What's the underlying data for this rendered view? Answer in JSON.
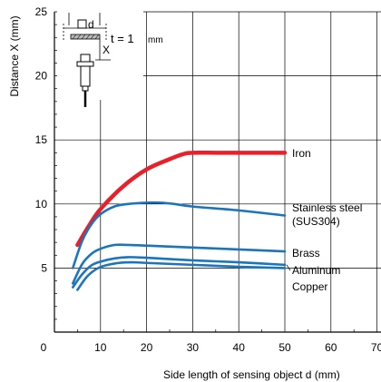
{
  "chart_data": {
    "type": "line",
    "xlabel": "Side length of sensing object d (mm)",
    "ylabel": "Distance X (mm)",
    "xlim": [
      0,
      70
    ],
    "ylim": [
      0,
      25
    ],
    "x_ticks": [
      "0",
      "10",
      "20",
      "30",
      "40",
      "50",
      "60",
      "70"
    ],
    "y_ticks": [
      "5",
      "10",
      "15",
      "20",
      "25"
    ],
    "grid": true,
    "series": [
      {
        "name": "Iron",
        "color": "#e8202a",
        "points": [
          [
            5,
            6.8
          ],
          [
            7.5,
            8.3
          ],
          [
            10,
            9.6
          ],
          [
            15,
            11.4
          ],
          [
            20,
            12.7
          ],
          [
            25,
            13.5
          ],
          [
            28,
            13.9
          ],
          [
            30,
            14.0
          ],
          [
            35,
            14.0
          ],
          [
            40,
            14.0
          ],
          [
            50,
            14.0
          ]
        ]
      },
      {
        "name": "Stainless steel",
        "name_line2": "(SUS304)",
        "color": "#1a75bc",
        "points": [
          [
            4,
            5.0
          ],
          [
            6,
            7.1
          ],
          [
            8,
            8.4
          ],
          [
            10,
            9.2
          ],
          [
            13,
            9.8
          ],
          [
            16,
            10.0
          ],
          [
            20,
            10.1
          ],
          [
            23,
            10.1
          ],
          [
            26,
            10.0
          ],
          [
            30,
            9.8
          ],
          [
            40,
            9.5
          ],
          [
            50,
            9.1
          ]
        ]
      },
      {
        "name": "Brass",
        "color": "#1a75bc",
        "points": [
          [
            4,
            3.8
          ],
          [
            6,
            5.3
          ],
          [
            8,
            6.1
          ],
          [
            10,
            6.5
          ],
          [
            13,
            6.8
          ],
          [
            16,
            6.8
          ],
          [
            20,
            6.75
          ],
          [
            30,
            6.6
          ],
          [
            40,
            6.45
          ],
          [
            50,
            6.3
          ]
        ]
      },
      {
        "name": "Aluminum",
        "color": "#1a75bc",
        "points": [
          [
            4,
            3.5
          ],
          [
            6,
            4.5
          ],
          [
            8,
            5.2
          ],
          [
            10,
            5.5
          ],
          [
            13,
            5.75
          ],
          [
            16,
            5.85
          ],
          [
            20,
            5.8
          ],
          [
            30,
            5.6
          ],
          [
            40,
            5.45
          ],
          [
            50,
            5.25
          ]
        ]
      },
      {
        "name": "Copper",
        "color": "#1a75bc",
        "points": [
          [
            5,
            3.3
          ],
          [
            7,
            4.3
          ],
          [
            9,
            4.9
          ],
          [
            11,
            5.2
          ],
          [
            14,
            5.4
          ],
          [
            17,
            5.45
          ],
          [
            20,
            5.4
          ],
          [
            30,
            5.25
          ],
          [
            40,
            5.1
          ],
          [
            50,
            5.0
          ]
        ]
      }
    ]
  },
  "inset": {
    "d_label": "d",
    "x_label": "X",
    "t_label": "t = 1",
    "t_unit": "mm"
  }
}
